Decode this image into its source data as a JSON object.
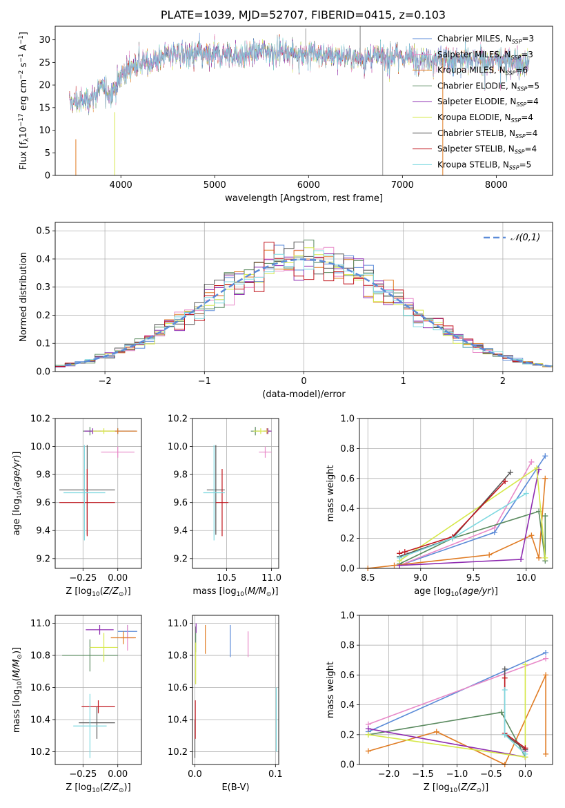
{
  "figure_title": "PLATE=1039, MJD=52707, FIBERID=0415, z=0.103",
  "colors": {
    "Chabrier MILES": "#5b8bd8",
    "Salpeter MILES": "#e889c8",
    "Kroupa MILES": "#e07b22",
    "Chabrier ELODIE": "#5a8a5f",
    "Salpeter ELODIE": "#8e2bb0",
    "Kroupa ELODIE": "#d6e84a",
    "Chabrier STELIB": "#555555",
    "Salpeter STELIB": "#c0151d",
    "Kroupa STELIB": "#7dd8e0"
  },
  "chart_data": [
    {
      "id": "spectrum",
      "type": "line",
      "xlabel": "wavelength [Angstrom, rest frame]",
      "ylabel": "Flux [f_λ10^-17 erg cm^-2 s^-1 A^-1]",
      "xlim": [
        3300,
        8600
      ],
      "ylim": [
        0,
        33
      ],
      "xticks": [
        4000,
        5000,
        6000,
        7000,
        8000
      ],
      "yticks": [
        0,
        5,
        10,
        15,
        20,
        25,
        30
      ],
      "grid": false,
      "legend": "top-right",
      "legend_entries": [
        {
          "model": "Chabrier MILES",
          "label": "Chabrier MILES, N",
          "sub": "SSP",
          "n": "=3"
        },
        {
          "model": "Salpeter MILES",
          "label": "Salpeter MILES, N",
          "sub": "SSP",
          "n": "=3"
        },
        {
          "model": "Kroupa MILES",
          "label": "Kroupa MILES, N",
          "sub": "SSP",
          "n": "=6"
        },
        {
          "model": "Chabrier ELODIE",
          "label": "Chabrier ELODIE, N",
          "sub": "SSP",
          "n": "=5"
        },
        {
          "model": "Salpeter ELODIE",
          "label": "Salpeter ELODIE, N",
          "sub": "SSP",
          "n": "=4"
        },
        {
          "model": "Kroupa ELODIE",
          "label": "Kroupa ELODIE, N",
          "sub": "SSP",
          "n": "=4"
        },
        {
          "model": "Chabrier STELIB",
          "label": "Chabrier STELIB, N",
          "sub": "SSP",
          "n": "=4"
        },
        {
          "model": "Salpeter STELIB",
          "label": "Salpeter STELIB, N",
          "sub": "SSP",
          "n": "=4"
        },
        {
          "model": "Kroupa STELIB",
          "label": "Kroupa STELIB, N",
          "sub": "SSP",
          "n": "=5"
        }
      ],
      "continuum": {
        "x": [
          3450,
          3600,
          3700,
          3800,
          3900,
          4000,
          4100,
          4200,
          4300,
          4500,
          4700,
          4900,
          5100,
          5300,
          5500,
          5700,
          6000,
          6300,
          6600,
          6900,
          7200,
          7500,
          7800,
          8100,
          8350
        ],
        "y": [
          16.0,
          16.5,
          17.5,
          19.5,
          18.0,
          22.0,
          24.0,
          25.0,
          25.0,
          27.0,
          27.0,
          26.5,
          27.0,
          26.5,
          27.5,
          27.5,
          27.0,
          26.5,
          26.0,
          26.5,
          26.0,
          26.0,
          25.5,
          25.5,
          24.5
        ]
      }
    },
    {
      "id": "residuals",
      "type": "bar",
      "xlabel": "(data-model)/error",
      "ylabel": "Normed distribution",
      "xlim": [
        -2.5,
        2.5
      ],
      "ylim": [
        0,
        0.53
      ],
      "xticks": [
        -2,
        -1,
        0,
        1,
        2
      ],
      "yticks": [
        0.0,
        0.1,
        0.2,
        0.3,
        0.4,
        0.5
      ],
      "grid": true,
      "legend": "top-right",
      "legend_label": "𝒩(0,1)",
      "reference_curve": "normal(0,1)"
    },
    {
      "id": "age-vs-Z",
      "type": "scatter",
      "xlabel": "Z [log10(Z/Z⊙)]",
      "ylabel": "age  [log10(age/yr)]",
      "xlim": [
        -0.45,
        0.17
      ],
      "ylim": [
        9.13,
        10.2
      ],
      "xticks": [
        -0.25,
        0.0
      ],
      "xticklabels": [
        "−0.25",
        "0.00"
      ],
      "yticks": [
        9.2,
        9.4,
        9.6,
        9.8,
        10.0,
        10.2
      ],
      "grid": true,
      "points": [
        {
          "model": "Chabrier MILES",
          "x": 0.0,
          "xerr": 0.13,
          "y": 10.11,
          "yerr": 0.02
        },
        {
          "model": "Salpeter MILES",
          "x": 0.0,
          "xerr": 0.12,
          "y": 9.96,
          "yerr": 0.04
        },
        {
          "model": "Kroupa MILES",
          "x": 0.0,
          "xerr": 0.14,
          "y": 10.11,
          "yerr": 0.02
        },
        {
          "model": "Chabrier ELODIE",
          "x": -0.2,
          "xerr": 0.05,
          "y": 10.11,
          "yerr": 0.03
        },
        {
          "model": "Salpeter ELODIE",
          "x": -0.18,
          "xerr": 0.06,
          "y": 10.11,
          "yerr": 0.02
        },
        {
          "model": "Kroupa ELODIE",
          "x": -0.1,
          "xerr": 0.08,
          "y": 10.11,
          "yerr": 0.02
        },
        {
          "model": "Chabrier STELIB",
          "x": -0.22,
          "xerr": 0.2,
          "y": 9.69,
          "yerr": 0.32
        },
        {
          "model": "Salpeter STELIB",
          "x": -0.22,
          "xerr": 0.2,
          "y": 9.6,
          "yerr": 0.24
        },
        {
          "model": "Kroupa STELIB",
          "x": -0.24,
          "xerr": 0.15,
          "y": 9.67,
          "yerr": 0.34
        }
      ]
    },
    {
      "id": "age-vs-mass",
      "type": "scatter",
      "xlabel": "mass [log10(M/M⊙)]",
      "ylabel": "",
      "xlim": [
        10.12,
        11.08
      ],
      "ylim": [
        9.13,
        10.2
      ],
      "xticks": [
        10.5,
        11.0
      ],
      "xticklabels": [
        "10.5",
        "11.0"
      ],
      "yticks": [
        9.2,
        9.4,
        9.6,
        9.8,
        10.0,
        10.2
      ],
      "grid": true,
      "points": [
        {
          "model": "Chabrier MILES",
          "x": 10.95,
          "xerr": 0.04,
          "y": 10.11,
          "yerr": 0.02
        },
        {
          "model": "Salpeter MILES",
          "x": 10.93,
          "xerr": 0.07,
          "y": 9.96,
          "yerr": 0.04
        },
        {
          "model": "Kroupa MILES",
          "x": 10.95,
          "xerr": 0.04,
          "y": 10.11,
          "yerr": 0.02
        },
        {
          "model": "Chabrier ELODIE",
          "x": 10.82,
          "xerr": 0.05,
          "y": 10.11,
          "yerr": 0.03
        },
        {
          "model": "Salpeter ELODIE",
          "x": 10.96,
          "xerr": 0.04,
          "y": 10.11,
          "yerr": 0.02
        },
        {
          "model": "Kroupa ELODIE",
          "x": 10.88,
          "xerr": 0.08,
          "y": 10.11,
          "yerr": 0.02
        },
        {
          "model": "Chabrier STELIB",
          "x": 10.38,
          "xerr": 0.1,
          "y": 9.69,
          "yerr": 0.32
        },
        {
          "model": "Salpeter STELIB",
          "x": 10.45,
          "xerr": 0.07,
          "y": 9.6,
          "yerr": 0.24
        },
        {
          "model": "Kroupa STELIB",
          "x": 10.36,
          "xerr": 0.12,
          "y": 9.67,
          "yerr": 0.34
        }
      ]
    },
    {
      "id": "weight-vs-age",
      "type": "line",
      "xlabel": "age  [log10(age/yr)]",
      "ylabel": "mass weight",
      "xlim": [
        8.42,
        10.25
      ],
      "ylim": [
        0,
        1.0
      ],
      "xticks": [
        8.5,
        9.0,
        9.5,
        10.0
      ],
      "xticklabels": [
        "8.5",
        "9.0",
        "9.5",
        "10.0"
      ],
      "yticks": [
        0.0,
        0.2,
        0.4,
        0.6,
        0.8,
        1.0
      ],
      "grid": true,
      "series": [
        {
          "model": "Chabrier MILES",
          "x": [
            8.8,
            9.7,
            10.18
          ],
          "y": [
            0.02,
            0.24,
            0.75
          ]
        },
        {
          "model": "Salpeter MILES",
          "x": [
            8.8,
            9.7,
            10.05
          ],
          "y": [
            0.02,
            0.27,
            0.71
          ]
        },
        {
          "model": "Kroupa MILES",
          "x": [
            8.5,
            8.75,
            9.65,
            10.05,
            10.12,
            10.18
          ],
          "y": [
            0.0,
            0.02,
            0.09,
            0.22,
            0.07,
            0.6
          ]
        },
        {
          "model": "Chabrier ELODIE",
          "x": [
            8.8,
            9.3,
            10.12,
            10.18,
            10.18
          ],
          "y": [
            0.03,
            0.2,
            0.38,
            0.05,
            0.35
          ]
        },
        {
          "model": "Salpeter ELODIE",
          "x": [
            8.8,
            9.95,
            10.12
          ],
          "y": [
            0.02,
            0.06,
            0.66
          ]
        },
        {
          "model": "Kroupa ELODIE",
          "x": [
            8.8,
            10.1,
            10.18
          ],
          "y": [
            0.05,
            0.67,
            0.07
          ]
        },
        {
          "model": "Chabrier STELIB",
          "x": [
            8.8,
            9.3,
            9.85
          ],
          "y": [
            0.08,
            0.2,
            0.64
          ]
        },
        {
          "model": "Salpeter STELIB",
          "x": [
            8.8,
            8.85,
            9.3,
            9.8
          ],
          "y": [
            0.1,
            0.11,
            0.21,
            0.58
          ]
        },
        {
          "model": "Kroupa STELIB",
          "x": [
            8.8,
            9.3,
            10.0
          ],
          "y": [
            0.07,
            0.2,
            0.5
          ]
        }
      ]
    },
    {
      "id": "mass-vs-Z",
      "type": "scatter",
      "xlabel": "Z [log10(Z/Z⊙)]",
      "ylabel": "mass [log10(M/M⊙)]",
      "xlim": [
        -0.45,
        0.17
      ],
      "ylim": [
        10.12,
        11.05
      ],
      "xticks": [
        -0.25,
        0.0
      ],
      "xticklabels": [
        "−0.25",
        "0.00"
      ],
      "yticks": [
        10.2,
        10.4,
        10.6,
        10.8,
        11.0
      ],
      "grid": true,
      "points": [
        {
          "model": "Chabrier MILES",
          "x": 0.07,
          "xerr": 0.07,
          "y": 10.95,
          "yerr": 0.04
        },
        {
          "model": "Salpeter MILES",
          "x": 0.07,
          "xerr": 0.05,
          "y": 10.91,
          "yerr": 0.08
        },
        {
          "model": "Kroupa MILES",
          "x": 0.04,
          "xerr": 0.09,
          "y": 10.91,
          "yerr": 0.04
        },
        {
          "model": "Chabrier ELODIE",
          "x": -0.2,
          "xerr": 0.2,
          "y": 10.8,
          "yerr": 0.1
        },
        {
          "model": "Salpeter ELODIE",
          "x": -0.13,
          "xerr": 0.1,
          "y": 10.96,
          "yerr": 0.03
        },
        {
          "model": "Kroupa ELODIE",
          "x": -0.1,
          "xerr": 0.1,
          "y": 10.85,
          "yerr": 0.09
        },
        {
          "model": "Chabrier STELIB",
          "x": -0.15,
          "xerr": 0.13,
          "y": 10.38,
          "yerr": 0.1
        },
        {
          "model": "Salpeter STELIB",
          "x": -0.14,
          "xerr": 0.12,
          "y": 10.48,
          "yerr": 0.04
        },
        {
          "model": "Kroupa STELIB",
          "x": -0.2,
          "xerr": 0.12,
          "y": 10.36,
          "yerr": 0.2
        }
      ]
    },
    {
      "id": "mass-vs-EBV",
      "type": "scatter",
      "xlabel": "E(B-V)",
      "ylabel": "",
      "xlim": [
        -0.003,
        0.104
      ],
      "ylim": [
        10.12,
        11.05
      ],
      "xticks": [
        0.0,
        0.1
      ],
      "xticklabels": [
        "0.0",
        "0.1"
      ],
      "yticks": [
        10.2,
        10.4,
        10.6,
        10.8,
        11.0
      ],
      "grid": true,
      "points": [
        {
          "model": "Chabrier MILES",
          "x": 0.044,
          "y": 10.89,
          "yerr": 0.1
        },
        {
          "model": "Salpeter MILES",
          "x": 0.066,
          "y": 10.87,
          "yerr": 0.08
        },
        {
          "model": "Kroupa MILES",
          "x": 0.013,
          "y": 10.9,
          "yerr": 0.09
        },
        {
          "model": "Chabrier ELODIE",
          "x": 0.001,
          "y": 10.9,
          "yerr": 0.08
        },
        {
          "model": "Salpeter ELODIE",
          "x": 0.0015,
          "y": 10.97,
          "yerr": 0.03
        },
        {
          "model": "Kroupa ELODIE",
          "x": 0.001,
          "y": 10.75,
          "yerr": 0.13
        },
        {
          "model": "Chabrier STELIB",
          "x": 0.0,
          "y": 10.28,
          "yerr": 0.12
        },
        {
          "model": "Salpeter STELIB",
          "x": 0.0005,
          "y": 10.4,
          "yerr": 0.12
        },
        {
          "model": "Kroupa STELIB",
          "x": 0.101,
          "y": 10.4,
          "yerr": 0.2
        }
      ]
    },
    {
      "id": "weight-vs-Z",
      "type": "line",
      "xlabel": "Z [log10(Z/Z⊙)]",
      "ylabel": "mass weight",
      "xlim": [
        -2.43,
        0.4
      ],
      "ylim": [
        0,
        1.0
      ],
      "xticks": [
        -2.0,
        -1.5,
        -1.0,
        -0.5,
        0.0
      ],
      "xticklabels": [
        "−2.0",
        "−1.5",
        "−1.0",
        "−0.5",
        "0.0"
      ],
      "yticks": [
        0.0,
        0.2,
        0.4,
        0.6,
        0.8,
        1.0
      ],
      "grid": true,
      "series": [
        {
          "model": "Chabrier MILES",
          "x": [
            -2.3,
            0.3
          ],
          "y": [
            0.22,
            0.75
          ]
        },
        {
          "model": "Salpeter MILES",
          "x": [
            -2.3,
            0.3
          ],
          "y": [
            0.27,
            0.71
          ]
        },
        {
          "model": "Kroupa MILES",
          "x": [
            -2.3,
            -1.3,
            -0.3,
            0.3,
            0.3
          ],
          "y": [
            0.09,
            0.22,
            0.0,
            0.6,
            0.07
          ]
        },
        {
          "model": "Chabrier ELODIE",
          "x": [
            -2.3,
            -0.35,
            0.0
          ],
          "y": [
            0.2,
            0.35,
            0.05
          ]
        },
        {
          "model": "Salpeter ELODIE",
          "x": [
            -2.3,
            0.0,
            0.0
          ],
          "y": [
            0.24,
            0.05,
            0.09
          ]
        },
        {
          "model": "Kroupa ELODIE",
          "x": [
            -2.3,
            0.0,
            0.0
          ],
          "y": [
            0.2,
            0.05,
            0.67
          ]
        },
        {
          "model": "Chabrier STELIB",
          "x": [
            -0.3,
            -0.3,
            0.0
          ],
          "y": [
            0.64,
            0.2,
            0.1
          ]
        },
        {
          "model": "Salpeter STELIB",
          "x": [
            -0.3,
            -0.3,
            0.0
          ],
          "y": [
            0.58,
            0.21,
            0.11
          ]
        },
        {
          "model": "Kroupa STELIB",
          "x": [
            -0.3,
            -0.3,
            0.0
          ],
          "y": [
            0.5,
            0.2,
            0.07
          ]
        }
      ]
    }
  ]
}
